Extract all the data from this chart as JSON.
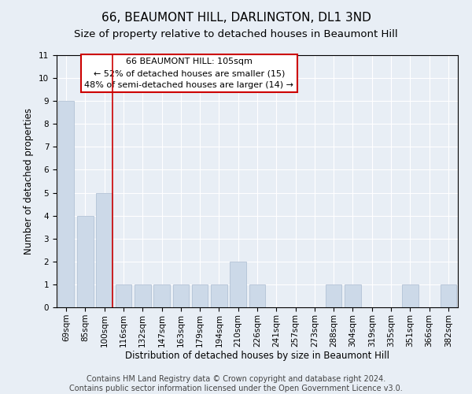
{
  "title": "66, BEAUMONT HILL, DARLINGTON, DL1 3ND",
  "subtitle": "Size of property relative to detached houses in Beaumont Hill",
  "xlabel": "Distribution of detached houses by size in Beaumont Hill",
  "ylabel": "Number of detached properties",
  "categories": [
    "69sqm",
    "85sqm",
    "100sqm",
    "116sqm",
    "132sqm",
    "147sqm",
    "163sqm",
    "179sqm",
    "194sqm",
    "210sqm",
    "226sqm",
    "241sqm",
    "257sqm",
    "273sqm",
    "288sqm",
    "304sqm",
    "319sqm",
    "335sqm",
    "351sqm",
    "366sqm",
    "382sqm"
  ],
  "values": [
    9,
    4,
    5,
    1,
    1,
    1,
    1,
    1,
    1,
    2,
    1,
    0,
    0,
    0,
    1,
    1,
    0,
    0,
    1,
    0,
    1
  ],
  "bar_color": "#ccd9e8",
  "bar_edge_color": "#aabbd0",
  "ylim": [
    0,
    11
  ],
  "yticks": [
    0,
    1,
    2,
    3,
    4,
    5,
    6,
    7,
    8,
    9,
    10,
    11
  ],
  "vline_color": "#cc0000",
  "annotation_box_text": "66 BEAUMONT HILL: 105sqm\n← 52% of detached houses are smaller (15)\n48% of semi-detached houses are larger (14) →",
  "annotation_box_color": "#cc0000",
  "annotation_box_bg": "#ffffff",
  "footer_line1": "Contains HM Land Registry data © Crown copyright and database right 2024.",
  "footer_line2": "Contains public sector information licensed under the Open Government Licence v3.0.",
  "background_color": "#e8eef5",
  "plot_bg_color": "#e8eef5",
  "grid_color": "#ffffff",
  "title_fontsize": 11,
  "subtitle_fontsize": 9.5,
  "axis_label_fontsize": 8.5,
  "tick_fontsize": 7.5,
  "footer_fontsize": 7,
  "annotation_fontsize": 8
}
